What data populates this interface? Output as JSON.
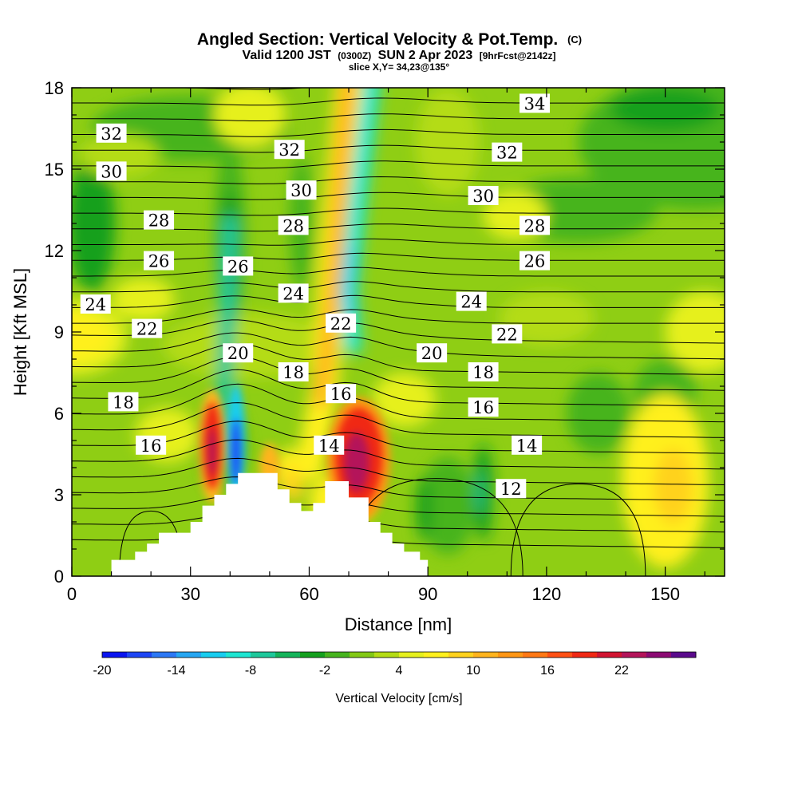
{
  "chart_data": {
    "type": "heatmap",
    "title": "Angled Section: Vertical Velocity & Pot.Temp.",
    "title_suffix": "(C)",
    "subtitle_parts": [
      "Valid 1200 JST",
      "(0300Z)",
      "SUN 2 Apr 2023",
      "[9hrFcst@2142z]"
    ],
    "subtitle2": "slice X,Y= 34,23@135°",
    "xlabel": "Distance [nm]",
    "ylabel": "Height [Kft MSL]",
    "xlim": [
      0,
      165
    ],
    "ylim": [
      0,
      18
    ],
    "x_ticks": [
      "0",
      "30",
      "60",
      "90",
      "120",
      "150"
    ],
    "y_ticks": [
      "0",
      "3",
      "6",
      "9",
      "12",
      "15",
      "18"
    ],
    "colorbar": {
      "label": "Vertical Velocity [cm/s]",
      "ticks": [
        "-20",
        "-14",
        "-8",
        "-2",
        "4",
        "10",
        "16",
        "22"
      ],
      "colors": [
        "#0a14f0",
        "#1e46f5",
        "#2c78f5",
        "#26a6f2",
        "#18cdf0",
        "#1ee6d2",
        "#1ec89b",
        "#14b45a",
        "#14a01e",
        "#46b41e",
        "#82c814",
        "#b4dc14",
        "#e6f01e",
        "#fff01e",
        "#ffd21e",
        "#ffb41e",
        "#ff9614",
        "#ff7814",
        "#ff5014",
        "#f02814",
        "#d21432",
        "#b4145a",
        "#8c0a73",
        "#5a0a8c"
      ]
    },
    "theta_labels": [
      {
        "text": "34",
        "x": 117,
        "y": 17.4
      },
      {
        "text": "32",
        "x": 10,
        "y": 16.3
      },
      {
        "text": "32",
        "x": 55,
        "y": 15.7
      },
      {
        "text": "32",
        "x": 110,
        "y": 15.6
      },
      {
        "text": "30",
        "x": 10,
        "y": 14.9
      },
      {
        "text": "30",
        "x": 58,
        "y": 14.2
      },
      {
        "text": "30",
        "x": 104,
        "y": 14.0
      },
      {
        "text": "28",
        "x": 22,
        "y": 13.1
      },
      {
        "text": "28",
        "x": 56,
        "y": 12.9
      },
      {
        "text": "28",
        "x": 117,
        "y": 12.9
      },
      {
        "text": "26",
        "x": 22,
        "y": 11.6
      },
      {
        "text": "26",
        "x": 42,
        "y": 11.4
      },
      {
        "text": "26",
        "x": 117,
        "y": 11.6
      },
      {
        "text": "24",
        "x": 6,
        "y": 10.0
      },
      {
        "text": "24",
        "x": 56,
        "y": 10.4
      },
      {
        "text": "24",
        "x": 101,
        "y": 10.1
      },
      {
        "text": "22",
        "x": 19,
        "y": 9.1
      },
      {
        "text": "22",
        "x": 68,
        "y": 9.3
      },
      {
        "text": "22",
        "x": 110,
        "y": 8.9
      },
      {
        "text": "20",
        "x": 42,
        "y": 8.2
      },
      {
        "text": "20",
        "x": 91,
        "y": 8.2
      },
      {
        "text": "18",
        "x": 56,
        "y": 7.5
      },
      {
        "text": "18",
        "x": 104,
        "y": 7.5
      },
      {
        "text": "18",
        "x": 13,
        "y": 6.4
      },
      {
        "text": "16",
        "x": 68,
        "y": 6.7
      },
      {
        "text": "16",
        "x": 104,
        "y": 6.2
      },
      {
        "text": "16",
        "x": 20,
        "y": 4.8
      },
      {
        "text": "14",
        "x": 65,
        "y": 4.8
      },
      {
        "text": "14",
        "x": 115,
        "y": 4.8
      },
      {
        "text": "12",
        "x": 111,
        "y": 3.2
      }
    ],
    "terrain_steps": [
      [
        10,
        0.6
      ],
      [
        16,
        0.9
      ],
      [
        19,
        1.2
      ],
      [
        22,
        1.6
      ],
      [
        30,
        2.0
      ],
      [
        33,
        2.6
      ],
      [
        36,
        3.0
      ],
      [
        39,
        3.4
      ],
      [
        42,
        3.8
      ],
      [
        52,
        3.2
      ],
      [
        55,
        2.7
      ],
      [
        58,
        2.4
      ],
      [
        61,
        2.7
      ],
      [
        64,
        3.5
      ],
      [
        70,
        2.9
      ],
      [
        75,
        2.0
      ],
      [
        78,
        1.6
      ],
      [
        81,
        1.2
      ],
      [
        84,
        0.9
      ],
      [
        88,
        0.6
      ],
      [
        89,
        0.6
      ]
    ]
  }
}
